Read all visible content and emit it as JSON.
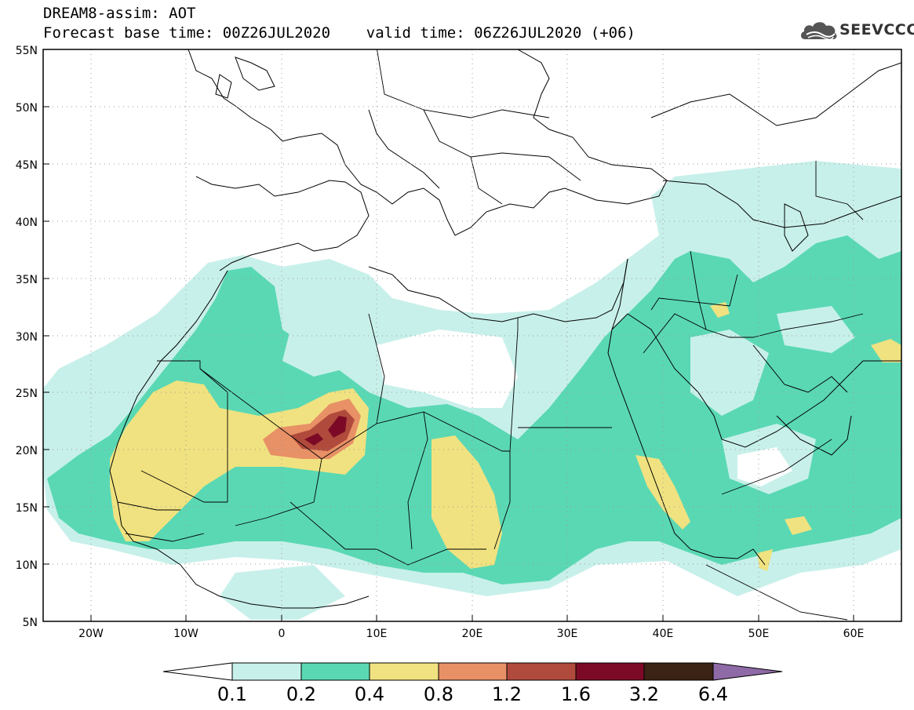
{
  "header": {
    "line1": "DREAM8-assim: AOT",
    "line2": "Forecast base time: 00Z26JUL2020    valid time: 06Z26JUL2020 (+06)"
  },
  "logo": {
    "text": "SEEVCCC",
    "icon": "cloud-icon"
  },
  "axes": {
    "lat_ticks": [
      "55N",
      "50N",
      "45N",
      "40N",
      "35N",
      "30N",
      "25N",
      "20N",
      "15N",
      "10N",
      "5N"
    ],
    "lon_ticks": [
      "20W",
      "10W",
      "0",
      "10E",
      "20E",
      "30E",
      "40E",
      "50E",
      "60E"
    ],
    "lat_range": [
      5,
      55
    ],
    "lon_range": [
      -25,
      65
    ],
    "grid": "dotted"
  },
  "colorbar": {
    "labels": [
      "0.1",
      "0.2",
      "0.4",
      "0.8",
      "1.2",
      "1.6",
      "3.2",
      "6.4"
    ],
    "colors": [
      "#ffffff",
      "#c8f0ea",
      "#5ad8b4",
      "#f0e280",
      "#e89066",
      "#b04a3c",
      "#7c0a26",
      "#3a2314",
      "#8e6aa6"
    ]
  }
}
